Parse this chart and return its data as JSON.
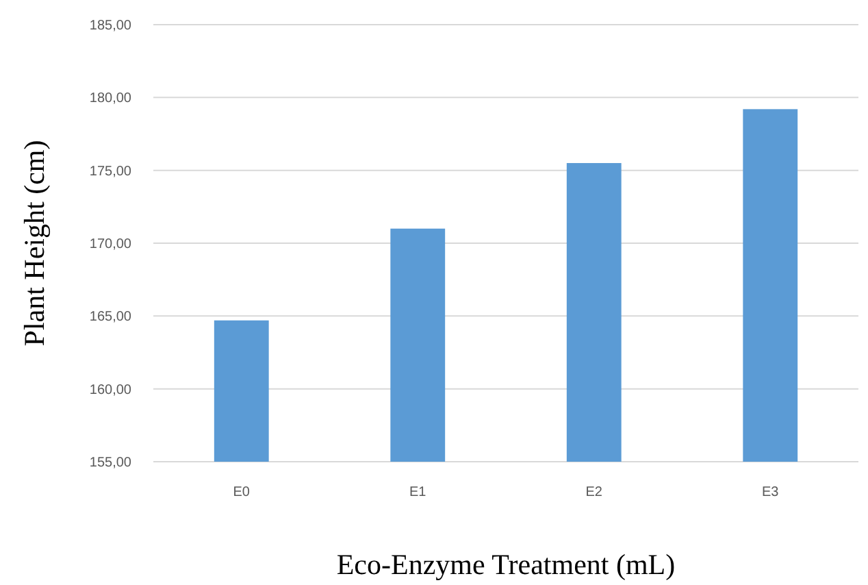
{
  "chart_data": {
    "type": "bar",
    "xlabel": "Eco-Enzyme Treatment (mL)",
    "ylabel": "Plant Height (cm)",
    "categories": [
      "E0",
      "E1",
      "E2",
      "E3"
    ],
    "values": [
      164.7,
      171.0,
      175.5,
      179.2
    ],
    "color": "#5b9bd5",
    "ylim": [
      155,
      185
    ],
    "yticks": [
      {
        "value": 155,
        "label": "155,00"
      },
      {
        "value": 160,
        "label": "160,00"
      },
      {
        "value": 165,
        "label": "165,00"
      },
      {
        "value": 170,
        "label": "170,00"
      },
      {
        "value": 175,
        "label": "175,00"
      },
      {
        "value": 180,
        "label": "180,00"
      },
      {
        "value": 185,
        "label": "185,00"
      }
    ],
    "grid": "y"
  }
}
